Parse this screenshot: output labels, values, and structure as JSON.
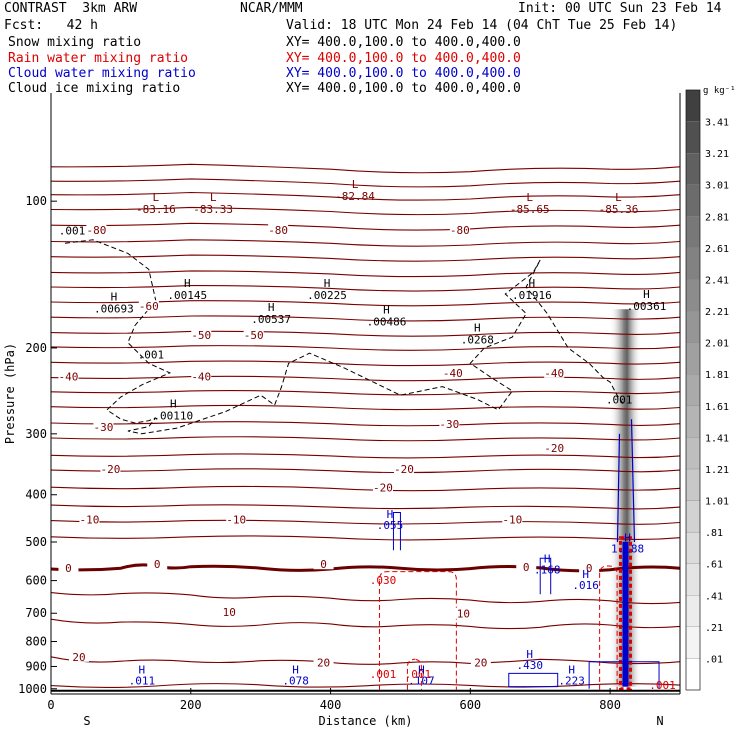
{
  "header": {
    "model": "CONTRAST  3km ARW",
    "org": "NCAR/MMM",
    "init": "Init: 00 UTC Sun 23 Feb 14",
    "fcst": "Fcst:   42 h",
    "valid": "Valid: 18 UTC Mon 24 Feb 14 (04 ChT Tue 25 Feb 14)",
    "fields": [
      {
        "name": "Snow mixing ratio",
        "xy": "XY= 400.0,100.0 to 400.0,400.0",
        "color": "#000000"
      },
      {
        "name": "Rain water mixing ratio",
        "xy": "XY= 400.0,100.0 to 400.0,400.0",
        "color": "#dd0000"
      },
      {
        "name": "Cloud water mixing ratio",
        "xy": "XY= 400.0,100.0 to 400.0,400.0",
        "color": "#0000cc"
      },
      {
        "name": "Cloud ice mixing ratio",
        "xy": "XY= 400.0,100.0 to 400.0,400.0",
        "color": "#000000"
      }
    ]
  },
  "colors": {
    "temperature": "#7a0000",
    "zero_isotherm": "#6a0000",
    "rain": "#dd0000",
    "cloud_water": "#0000cc",
    "ice": "#000000"
  },
  "chart_data": {
    "type": "line",
    "title": "",
    "xlabel": "Distance (km)",
    "ylabel": "Pressure (hPa)",
    "xlim": [
      0,
      900
    ],
    "ylim": [
      1025,
      60
    ],
    "y_scale": "log",
    "x_ticks": [
      0,
      200,
      400,
      600,
      800
    ],
    "y_ticks": [
      100,
      200,
      300,
      400,
      500,
      600,
      700,
      800,
      900,
      1000
    ],
    "x_end_labels": {
      "left": "S",
      "right": "N"
    },
    "colorbar": {
      "unit": "g kg⁻¹",
      "labels": [
        ".01",
        ".21",
        ".41",
        ".61",
        ".81",
        "1.01",
        "1.21",
        "1.41",
        "1.61",
        "1.81",
        "2.01",
        "2.21",
        "2.41",
        "2.61",
        "2.81",
        "3.01",
        "3.21",
        "3.41"
      ],
      "shades": [
        "#ffffff",
        "#f4f4f4",
        "#ececec",
        "#e4e4e4",
        "#dcdcdc",
        "#d2d2d2",
        "#c8c8c8",
        "#bebebe",
        "#b4b4b4",
        "#aaaaaa",
        "#a0a0a0",
        "#969696",
        "#8c8c8c",
        "#828282",
        "#787878",
        "#6c6c6c",
        "#606060",
        "#505050",
        "#404040"
      ]
    },
    "temperature_series": [
      {
        "label": "20",
        "x": [
          0,
          150,
          300,
          450,
          600,
          750,
          900
        ],
        "p": [
          985,
          987,
          982,
          986,
          984,
          985,
          983
        ]
      },
      {
        "label": "20",
        "x": [
          0,
          100,
          200,
          300,
          400,
          500,
          600,
          700,
          800,
          900
        ],
        "p": [
          860,
          878,
          880,
          876,
          883,
          885,
          887,
          870,
          885,
          880
        ]
      },
      {
        "label": "10",
        "x": [
          0,
          100,
          200,
          300,
          400,
          500,
          600,
          700,
          800,
          900
        ],
        "p": [
          720,
          730,
          738,
          740,
          736,
          742,
          745,
          748,
          740,
          745
        ]
      },
      {
        "label": "10",
        "x": [
          0,
          100,
          200,
          300,
          400,
          500,
          600,
          700,
          800,
          900
        ],
        "p": [
          635,
          638,
          642,
          648,
          652,
          656,
          658,
          662,
          660,
          665
        ]
      },
      {
        "label": "0",
        "x": [
          0,
          100,
          150,
          200,
          300,
          400,
          500,
          600,
          700,
          800,
          900
        ],
        "p": [
          568,
          566,
          560,
          562,
          566,
          568,
          566,
          567,
          565,
          570,
          566
        ]
      },
      {
        "label": "-10",
        "x": [
          0,
          200,
          400,
          600,
          800,
          900
        ],
        "p": [
          488,
          488,
          490,
          492,
          492,
          490
        ]
      },
      {
        "label": "-10",
        "x": [
          0,
          200,
          400,
          600,
          800,
          900
        ],
        "p": [
          452,
          452,
          456,
          456,
          458,
          456
        ]
      },
      {
        "label": "-10",
        "x": [
          0,
          200,
          400,
          600,
          800,
          900
        ],
        "p": [
          420,
          420,
          424,
          424,
          426,
          424
        ]
      },
      {
        "label": "-20",
        "x": [
          0,
          200,
          400,
          600,
          800,
          900
        ],
        "p": [
          386,
          386,
          388,
          390,
          390,
          388
        ]
      },
      {
        "label": "-20",
        "x": [
          0,
          200,
          400,
          600,
          800,
          900
        ],
        "p": [
          356,
          355,
          357,
          358,
          357,
          356
        ]
      },
      {
        "label": "-20",
        "x": [
          0,
          200,
          400,
          600,
          800,
          900
        ],
        "p": [
          332,
          331,
          333,
          334,
          334,
          333
        ]
      },
      {
        "label": "-30",
        "x": [
          0,
          200,
          400,
          600,
          800,
          900
        ],
        "p": [
          306,
          305,
          307,
          308,
          308,
          306
        ]
      },
      {
        "label": "-30",
        "x": [
          0,
          200,
          400,
          600,
          800,
          900
        ],
        "p": [
          285,
          284,
          286,
          287,
          287,
          286
        ]
      },
      {
        "label": "-40",
        "x": [
          0,
          200,
          400,
          600,
          800,
          900
        ],
        "p": [
          264,
          263,
          265,
          266,
          266,
          265
        ]
      },
      {
        "label": "-40",
        "x": [
          0,
          200,
          400,
          600,
          800,
          900
        ],
        "p": [
          246,
          245,
          247,
          248,
          247,
          246
        ]
      },
      {
        "label": "-40",
        "x": [
          0,
          200,
          400,
          600,
          800,
          900
        ],
        "p": [
          230,
          229,
          231,
          232,
          231,
          230
        ]
      },
      {
        "label": "-50",
        "x": [
          0,
          200,
          400,
          600,
          800,
          900
        ],
        "p": [
          214,
          213,
          215,
          216,
          215,
          214
        ]
      },
      {
        "label": "-50",
        "x": [
          0,
          200,
          400,
          600,
          800,
          900
        ],
        "p": [
          199,
          198,
          200,
          201,
          200,
          199
        ]
      },
      {
        "label": "-50",
        "x": [
          0,
          200,
          400,
          600,
          800,
          900
        ],
        "p": [
          186,
          185,
          187,
          188,
          187,
          186
        ]
      },
      {
        "label": "-50",
        "x": [
          0,
          200,
          400,
          600,
          800,
          900
        ],
        "p": [
          173,
          172,
          174,
          175,
          174,
          173
        ]
      },
      {
        "label": "-60",
        "x": [
          0,
          200,
          400,
          600,
          800,
          900
        ],
        "p": [
          161,
          160,
          162,
          163,
          162,
          161
        ]
      },
      {
        "label": "-60",
        "x": [
          0,
          200,
          400,
          600,
          800,
          900
        ],
        "p": [
          150,
          149,
          151,
          152,
          151,
          150
        ]
      },
      {
        "label": "-70",
        "x": [
          0,
          200,
          400,
          600,
          800,
          900
        ],
        "p": [
          140,
          139,
          141,
          142,
          141,
          140
        ]
      },
      {
        "label": "-70",
        "x": [
          0,
          200,
          400,
          600,
          800,
          900
        ],
        "p": [
          130,
          129,
          131,
          132,
          131,
          130
        ]
      },
      {
        "label": "-80",
        "x": [
          0,
          200,
          400,
          600,
          800,
          900
        ],
        "p": [
          121,
          120,
          122,
          123,
          122,
          121
        ]
      },
      {
        "label": "-80",
        "x": [
          0,
          200,
          400,
          600,
          800,
          900
        ],
        "p": [
          112,
          111,
          113,
          114,
          113,
          112
        ]
      },
      {
        "label": "-80",
        "x": [
          0,
          200,
          400,
          600,
          800,
          900
        ],
        "p": [
          104,
          103,
          105,
          106,
          105,
          104
        ]
      },
      {
        "label": "-80",
        "x": [
          0,
          200,
          400,
          600,
          800,
          900
        ],
        "p": [
          97,
          96,
          98,
          99,
          98,
          97
        ]
      },
      {
        "label": "-70",
        "x": [
          0,
          200,
          400,
          600,
          800,
          900
        ],
        "p": [
          91,
          90,
          92,
          93,
          92,
          91
        ]
      },
      {
        "label": "-70",
        "x": [
          0,
          200,
          400,
          600,
          800,
          900
        ],
        "p": [
          85,
          84,
          86,
          87,
          86,
          85
        ]
      }
    ],
    "contour_labels": [
      {
        "text": "-80",
        "x": 65,
        "p": 115
      },
      {
        "text": "-80",
        "x": 325,
        "p": 115
      },
      {
        "text": "-80",
        "x": 585,
        "p": 115
      },
      {
        "text": "-60",
        "x": 140,
        "p": 165
      },
      {
        "text": "-50",
        "x": 215,
        "p": 189
      },
      {
        "text": "-50",
        "x": 290,
        "p": 189
      },
      {
        "text": "-40",
        "x": 25,
        "p": 230
      },
      {
        "text": "-40",
        "x": 215,
        "p": 230
      },
      {
        "text": "-40",
        "x": 575,
        "p": 226
      },
      {
        "text": "-40",
        "x": 720,
        "p": 226
      },
      {
        "text": "-30",
        "x": 75,
        "p": 292
      },
      {
        "text": "-30",
        "x": 570,
        "p": 288
      },
      {
        "text": "-20",
        "x": 85,
        "p": 356
      },
      {
        "text": "-20",
        "x": 505,
        "p": 356
      },
      {
        "text": "-20",
        "x": 475,
        "p": 388
      },
      {
        "text": "-20",
        "x": 720,
        "p": 322
      },
      {
        "text": "-10",
        "x": 55,
        "p": 452
      },
      {
        "text": "-10",
        "x": 265,
        "p": 452
      },
      {
        "text": "-10",
        "x": 660,
        "p": 452
      },
      {
        "text": "0",
        "x": 25,
        "p": 568
      },
      {
        "text": "0",
        "x": 152,
        "p": 558
      },
      {
        "text": "0",
        "x": 390,
        "p": 558
      },
      {
        "text": "0",
        "x": 680,
        "p": 566
      },
      {
        "text": "0",
        "x": 770,
        "p": 568
      },
      {
        "text": "10",
        "x": 255,
        "p": 700
      },
      {
        "text": "10",
        "x": 590,
        "p": 705
      },
      {
        "text": "20",
        "x": 40,
        "p": 864
      },
      {
        "text": "20",
        "x": 390,
        "p": 887
      },
      {
        "text": "20",
        "x": 615,
        "p": 887
      }
    ],
    "extrema_labels": [
      {
        "mark": "L",
        "value": "-83.16",
        "x": 150,
        "p": 100
      },
      {
        "mark": "L",
        "value": "-83.33",
        "x": 232,
        "p": 100
      },
      {
        "mark": "L",
        "value": "-82.84",
        "x": 435,
        "p": 94
      },
      {
        "mark": "L",
        "value": "-85.65",
        "x": 685,
        "p": 100
      },
      {
        "mark": "L",
        "value": "-85.36",
        "x": 812,
        "p": 100
      },
      {
        "mark": "H",
        "value": ".00693",
        "x": 90,
        "p": 160
      },
      {
        "mark": "H",
        "value": ".00145",
        "x": 195,
        "p": 150
      },
      {
        "mark": "H",
        "value": ".00537",
        "x": 315,
        "p": 168
      },
      {
        "mark": "H",
        "value": ".00225",
        "x": 395,
        "p": 150
      },
      {
        "mark": "H",
        "value": ".00486",
        "x": 480,
        "p": 170
      },
      {
        "mark": "H",
        "value": ".0268",
        "x": 610,
        "p": 185
      },
      {
        "mark": "H",
        "value": ".01916",
        "x": 688,
        "p": 150
      },
      {
        "mark": "H",
        "value": ".00361",
        "x": 852,
        "p": 158
      },
      {
        "mark": "H",
        "value": ".00110",
        "x": 175,
        "p": 265
      }
    ],
    "ice_labels": [
      {
        "text": ".001",
        "x": 30,
        "p": 117
      },
      {
        "text": ".001",
        "x": 143,
        "p": 210
      },
      {
        "text": ".001",
        "x": 813,
        "p": 260
      }
    ],
    "cloud_ice_outline": [
      {
        "x": [
          20,
          60,
          110,
          140,
          150,
          120,
          110,
          140,
          170,
          130,
          100,
          80,
          100,
          120,
          140,
          150,
          140,
          110,
          130,
          180,
          250,
          300,
          320,
          330,
          340,
          370,
          420,
          500,
          560,
          610,
          640,
          660,
          630,
          600,
          620,
          660,
          680,
          650,
          690,
          700,
          680,
          710,
          740,
          770,
          790,
          800,
          810,
          820
        ]
      },
      {
        "p": [
          122,
          120,
          128,
          138,
          160,
          180,
          195,
          215,
          225,
          238,
          252,
          268,
          280,
          285,
          282,
          278,
          290,
          296,
          300,
          292,
          270,
          250,
          262,
          240,
          215,
          205,
          220,
          250,
          240,
          255,
          268,
          245,
          230,
          215,
          200,
          190,
          170,
          155,
          140,
          132,
          150,
          170,
          200,
          215,
          230,
          235,
          250,
          262
        ]
      }
    ],
    "rain_labels": [
      {
        "text": ".030",
        "x": 475,
        "p": 610
      },
      {
        "text": ".001",
        "x": 475,
        "p": 950
      },
      {
        "text": ".001",
        "x": 525,
        "p": 950
      },
      {
        "text": ".001",
        "x": 875,
        "p": 1000
      }
    ],
    "rain_columns": [
      {
        "x0": 470,
        "x1": 580,
        "p_top": 575,
        "p_bot": 1005
      },
      {
        "x0": 510,
        "x1": 530,
        "p_top": 870,
        "p_bot": 1005
      },
      {
        "x0": 785,
        "x1": 810,
        "p_top": 560,
        "p_bot": 1005
      }
    ],
    "cloud_water_labels": [
      {
        "text": ".055",
        "x": 485,
        "p": 470
      },
      {
        "text": ".168",
        "x": 710,
        "p": 580
      },
      {
        "text": ".016",
        "x": 765,
        "p": 625
      },
      {
        "text": "1.188",
        "x": 825,
        "p": 525
      },
      {
        "text": ".011",
        "x": 130,
        "p": 980
      },
      {
        "text": ".078",
        "x": 350,
        "p": 980
      },
      {
        "text": ".107",
        "x": 530,
        "p": 980
      },
      {
        "text": ".223",
        "x": 745,
        "p": 980
      },
      {
        "text": ".430",
        "x": 685,
        "p": 910
      }
    ],
    "convective_core": {
      "x_center": 822,
      "p_top": 280,
      "p_bot": 990
    }
  }
}
